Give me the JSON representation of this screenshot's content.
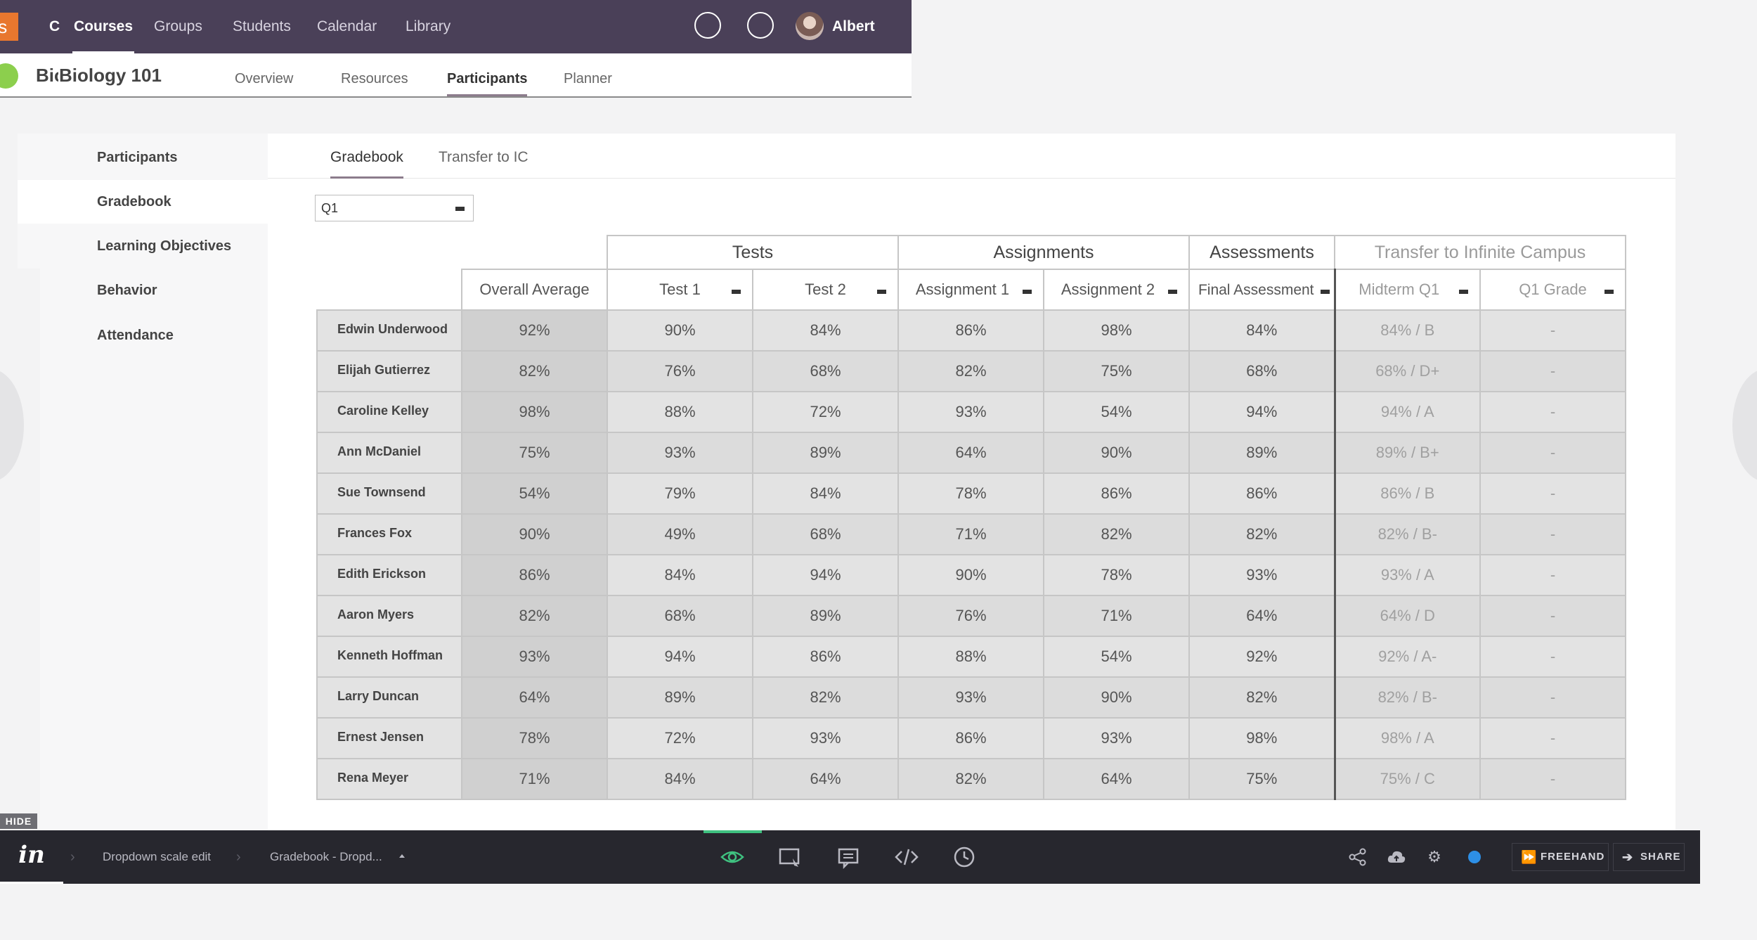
{
  "topbar": {
    "logo_text": "ts",
    "back_label": "C",
    "nav": [
      "Courses",
      "Groups",
      "Students",
      "Calendar",
      "Library"
    ],
    "active_nav": "Courses",
    "user_name": "Albert"
  },
  "course": {
    "abbr": "Biology 101",
    "title": "Biology 101",
    "tabs": [
      "Overview",
      "Resources",
      "Participants",
      "Planner"
    ],
    "active_tab": "Participants"
  },
  "sidebar": {
    "items": [
      "Participants",
      "Gradebook",
      "Learning Objectives",
      "Behavior",
      "Attendance"
    ],
    "active_item": "Gradebook"
  },
  "main": {
    "tabs": [
      "Gradebook",
      "Transfer to IC"
    ],
    "active_tab": "Gradebook",
    "quarter_select": "Q1"
  },
  "gradebook": {
    "groups": [
      "Tests",
      "Assignments",
      "Assessments",
      "Transfer to Infinite Campus"
    ],
    "columns": [
      "Overall Average",
      "Test 1",
      "Test 2",
      "Assignment 1",
      "Assignment 2",
      "Final Assessment",
      "Midterm Q1",
      "Q1 Grade"
    ],
    "rows": [
      {
        "name": "Edwin Underwood",
        "avg": "92%",
        "t1": "90%",
        "t2": "84%",
        "a1": "86%",
        "a2": "98%",
        "fa": "84%",
        "mq": "84% / B",
        "qg": "-"
      },
      {
        "name": "Elijah Gutierrez",
        "avg": "82%",
        "t1": "76%",
        "t2": "68%",
        "a1": "82%",
        "a2": "75%",
        "fa": "68%",
        "mq": "68% / D+",
        "qg": "-"
      },
      {
        "name": "Caroline Kelley",
        "avg": "98%",
        "t1": "88%",
        "t2": "72%",
        "a1": "93%",
        "a2": "54%",
        "fa": "94%",
        "mq": "94% / A",
        "qg": "-"
      },
      {
        "name": "Ann McDaniel",
        "avg": "75%",
        "t1": "93%",
        "t2": "89%",
        "a1": "64%",
        "a2": "90%",
        "fa": "89%",
        "mq": "89% / B+",
        "qg": "-"
      },
      {
        "name": "Sue Townsend",
        "avg": "54%",
        "t1": "79%",
        "t2": "84%",
        "a1": "78%",
        "a2": "86%",
        "fa": "86%",
        "mq": "86% / B",
        "qg": "-"
      },
      {
        "name": "Frances Fox",
        "avg": "90%",
        "t1": "49%",
        "t2": "68%",
        "a1": "71%",
        "a2": "82%",
        "fa": "82%",
        "mq": "82% / B-",
        "qg": "-"
      },
      {
        "name": "Edith Erickson",
        "avg": "86%",
        "t1": "84%",
        "t2": "94%",
        "a1": "90%",
        "a2": "78%",
        "fa": "93%",
        "mq": "93% / A",
        "qg": "-"
      },
      {
        "name": "Aaron Myers",
        "avg": "82%",
        "t1": "68%",
        "t2": "89%",
        "a1": "76%",
        "a2": "71%",
        "fa": "64%",
        "mq": "64% / D",
        "qg": "-"
      },
      {
        "name": "Kenneth Hoffman",
        "avg": "93%",
        "t1": "94%",
        "t2": "86%",
        "a1": "88%",
        "a2": "54%",
        "fa": "92%",
        "mq": "92% / A-",
        "qg": "-"
      },
      {
        "name": "Larry Duncan",
        "avg": "64%",
        "t1": "89%",
        "t2": "82%",
        "a1": "93%",
        "a2": "90%",
        "fa": "82%",
        "mq": "82% / B-",
        "qg": "-"
      },
      {
        "name": "Ernest Jensen",
        "avg": "78%",
        "t1": "72%",
        "t2": "93%",
        "a1": "86%",
        "a2": "93%",
        "fa": "98%",
        "mq": "98% / A",
        "qg": "-"
      },
      {
        "name": "Rena Meyer",
        "avg": "71%",
        "t1": "84%",
        "t2": "64%",
        "a1": "82%",
        "a2": "64%",
        "fa": "75%",
        "mq": "75% / C",
        "qg": "-"
      }
    ]
  },
  "hide_label": "HIDE",
  "toolbar": {
    "logo": "in",
    "breadcrumbs": [
      "Dropdown scale edit",
      "Gradebook - Dropd..."
    ],
    "tools": [
      "preview-icon",
      "inspect-icon",
      "comment-icon",
      "code-icon",
      "history-icon"
    ],
    "right_icons": [
      "share-nodes-icon",
      "cloud-upload-icon",
      "gear-icon"
    ],
    "freehand_label": "FREEHAND",
    "share_label": "SHARE",
    "status_color": "#2d8fe6",
    "accent_color": "#3fc180"
  }
}
